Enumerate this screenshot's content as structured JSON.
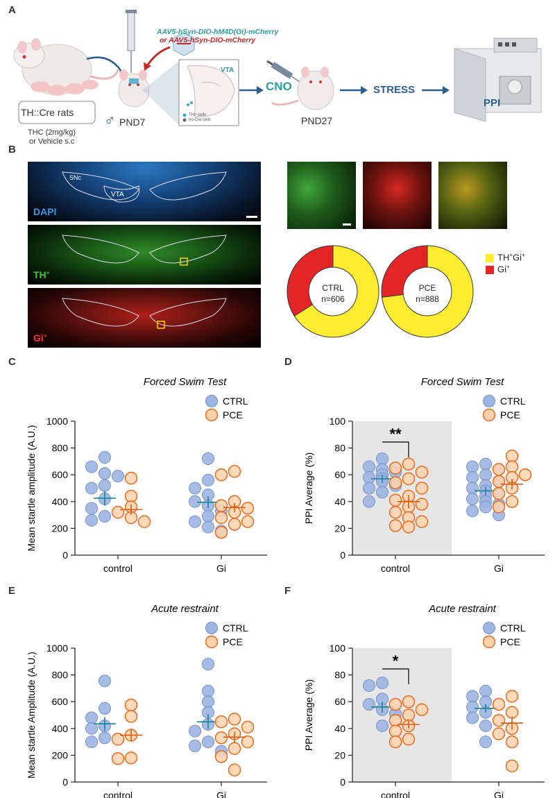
{
  "panels": {
    "A": "A",
    "B": "B",
    "C": "C",
    "D": "D",
    "E": "E",
    "F": "F"
  },
  "schematic": {
    "rats_label": "TH::Cre rats",
    "treatment": "THC (2mg/kg)",
    "treatment_alt": "or Vehicle s.c",
    "virus_line1": "AAV5-hSyn-DIO-hM4D(Gi)-mCherry",
    "virus_line2": "or AAV5-hSyn-DIO-mCherry",
    "male_symbol": "♂",
    "pnd7": "PND7",
    "vta_label": "VTA",
    "legend_th": "TH+ cells",
    "legend_nocre": "no-Cre cells",
    "cno": "CNO",
    "pnd27": "PND27",
    "stress": "STRESS",
    "ppi": "PPI",
    "colors": {
      "arrow": "#2e5d8e",
      "teal": "#2a9d9d",
      "red": "#c62828"
    }
  },
  "micrographs": {
    "dapi": "DAPI",
    "th": "TH",
    "th_sup": "+",
    "gi": "Gi",
    "gi_sup": "+",
    "snc": "SNc",
    "vta": "VTA"
  },
  "donut_legend": {
    "thgi": "TH",
    "thgi_sup": "+",
    "thgi_mid": "Gi",
    "thgi_sup2": "+",
    "gi": "Gi",
    "gi_sup": "+"
  },
  "donuts": [
    {
      "group": "CTRL",
      "n": "n=606",
      "th_gi_fraction": 0.66,
      "gi_fraction": 0.34
    },
    {
      "group": "PCE",
      "n": "n=888",
      "th_gi_fraction": 0.73,
      "gi_fraction": 0.27
    }
  ],
  "legend": {
    "ctrl": "CTRL",
    "pce": "PCE"
  },
  "chart_data": [
    {
      "id": "C",
      "type": "scatter",
      "title": "Forced Swim Test",
      "ylabel": "Mean startle amplitude (A.U.)",
      "categories": [
        "control",
        "Gi"
      ],
      "ylim": [
        0,
        1000
      ],
      "yticks": [
        0,
        200,
        400,
        600,
        800,
        1000
      ],
      "series": [
        {
          "name": "CTRL",
          "mean": [
            425,
            395
          ],
          "sem": [
            55,
            45
          ],
          "points": [
            [
              730,
              660,
              610,
              590,
              520,
              500,
              420,
              350,
              290,
              260
            ],
            [
              720,
              560,
              500,
              450,
              400,
              370,
              330,
              290,
              250,
              210,
              180
            ]
          ]
        },
        {
          "name": "PCE",
          "mean": [
            340,
            355
          ],
          "sem": [
            40,
            35
          ],
          "points": [
            [
              575,
              440,
              360,
              320,
              280,
              250
            ],
            [
              625,
              600,
              400,
              370,
              350,
              320,
              280,
              250,
              230,
              170
            ]
          ]
        }
      ],
      "annotation": null
    },
    {
      "id": "D",
      "type": "scatter",
      "title": "Forced Swim Test",
      "ylabel": "PPI Average (%)",
      "categories": [
        "control",
        "Gi"
      ],
      "ylim": [
        0,
        100
      ],
      "yticks": [
        0,
        20,
        40,
        60,
        80,
        100
      ],
      "series": [
        {
          "name": "CTRL",
          "mean": [
            57,
            48
          ],
          "sem": [
            3,
            3
          ],
          "points": [
            [
              72,
              66,
              64,
              62,
              60,
              58,
              57,
              55,
              52,
              50,
              47,
              40
            ],
            [
              68,
              66,
              64,
              60,
              58,
              55,
              52,
              50,
              48,
              46,
              44,
              42,
              40,
              38,
              36,
              33,
              30
            ]
          ]
        },
        {
          "name": "PCE",
          "mean": [
            40,
            53
          ],
          "sem": [
            5,
            4
          ],
          "points": [
            [
              68,
              65,
              62,
              57,
              54,
              50,
              44,
              41,
              38,
              36,
              32,
              28,
              25,
              22,
              21
            ],
            [
              74,
              66,
              64,
              60,
              58,
              55,
              50,
              46,
              40,
              36
            ]
          ]
        }
      ],
      "annotation": "**",
      "shaded_category": "control"
    },
    {
      "id": "E",
      "type": "scatter",
      "title": "Acute restraint",
      "ylabel": "Mean startle Amplitude (A.U.)",
      "categories": [
        "control",
        "Gi"
      ],
      "ylim": [
        0,
        1000
      ],
      "yticks": [
        0,
        200,
        400,
        600,
        800,
        1000
      ],
      "series": [
        {
          "name": "CTRL",
          "mean": [
            435,
            450
          ],
          "sem": [
            50,
            55
          ],
          "points": [
            [
              755,
              550,
              480,
              420,
              400,
              330,
              300
            ],
            [
              880,
              680,
              600,
              520,
              430,
              380,
              300,
              270,
              230
            ]
          ]
        },
        {
          "name": "PCE",
          "mean": [
            350,
            335
          ],
          "sem": [
            45,
            40
          ],
          "points": [
            [
              575,
              490,
              350,
              320,
              180,
              175
            ],
            [
              470,
              450,
              410,
              360,
              330,
              300,
              250,
              190,
              90
            ]
          ]
        }
      ],
      "annotation": null
    },
    {
      "id": "F",
      "type": "scatter",
      "title": "Acute restraint",
      "ylabel": "PPI Average (%)",
      "categories": [
        "control",
        "Gi"
      ],
      "ylim": [
        0,
        100
      ],
      "yticks": [
        0,
        20,
        40,
        60,
        80,
        100
      ],
      "series": [
        {
          "name": "CTRL",
          "mean": [
            56,
            55
          ],
          "sem": [
            4,
            3
          ],
          "points": [
            [
              74,
              72,
              62,
              58,
              54,
              51,
              42
            ],
            [
              68,
              64,
              60,
              56,
              52,
              48,
              42,
              30
            ]
          ]
        },
        {
          "name": "PCE",
          "mean": [
            43,
            44
          ],
          "sem": [
            3,
            5
          ],
          "points": [
            [
              60,
              58,
              54,
              50,
              46,
              42,
              38,
              32,
              30
            ],
            [
              64,
              58,
              52,
              46,
              40,
              36,
              30,
              12
            ]
          ]
        }
      ],
      "annotation": "*",
      "shaded_category": "control"
    }
  ]
}
